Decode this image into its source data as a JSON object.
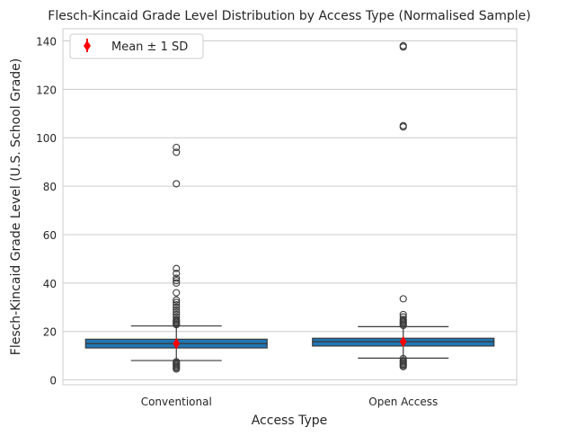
{
  "chart_data": {
    "type": "box",
    "title": "Flesch-Kincaid Grade Level Distribution by Access Type (Normalised Sample)",
    "xlabel": "Access Type",
    "ylabel": "Flesch-Kincaid Grade Level (U.S. School Grade)",
    "ylim": [
      -2,
      145
    ],
    "yticks": [
      0,
      20,
      40,
      60,
      80,
      100,
      120,
      140
    ],
    "grid": "y",
    "legend": {
      "position": "top-left",
      "label": "Mean ± 1 SD"
    },
    "colors": {
      "box": "#1f77b4",
      "mean": "#ff0000",
      "grid": "#cccccc"
    },
    "categories": [
      "Conventional",
      "Open Access"
    ],
    "boxes": [
      {
        "category": "Conventional",
        "q1": 13.2,
        "median": 15.0,
        "q3": 16.8,
        "whisker_low": 8.0,
        "whisker_high": 22.3,
        "mean": 15.0,
        "sd": 2.0,
        "outliers": [
          96.0,
          94.0,
          81.0,
          46.0,
          44.0,
          42.0,
          41.0,
          40.0,
          36.0,
          33.0,
          32.0,
          31.0,
          30.0,
          29.0,
          28.0,
          27.0,
          26.0,
          25.0,
          24.5,
          24.0,
          23.5,
          23.0,
          22.8,
          7.5,
          7.0,
          6.5,
          6.0,
          5.5,
          5.0,
          4.5
        ]
      },
      {
        "category": "Open Access",
        "q1": 14.0,
        "median": 15.8,
        "q3": 17.2,
        "whisker_low": 9.0,
        "whisker_high": 22.0,
        "mean": 15.8,
        "sd": 1.8,
        "outliers": [
          138.0,
          137.5,
          105.0,
          104.5,
          33.5,
          27.0,
          26.0,
          25.0,
          24.5,
          24.0,
          23.5,
          23.0,
          22.5,
          8.8,
          8.0,
          7.5,
          7.0,
          6.5,
          6.0,
          5.5
        ]
      }
    ]
  }
}
